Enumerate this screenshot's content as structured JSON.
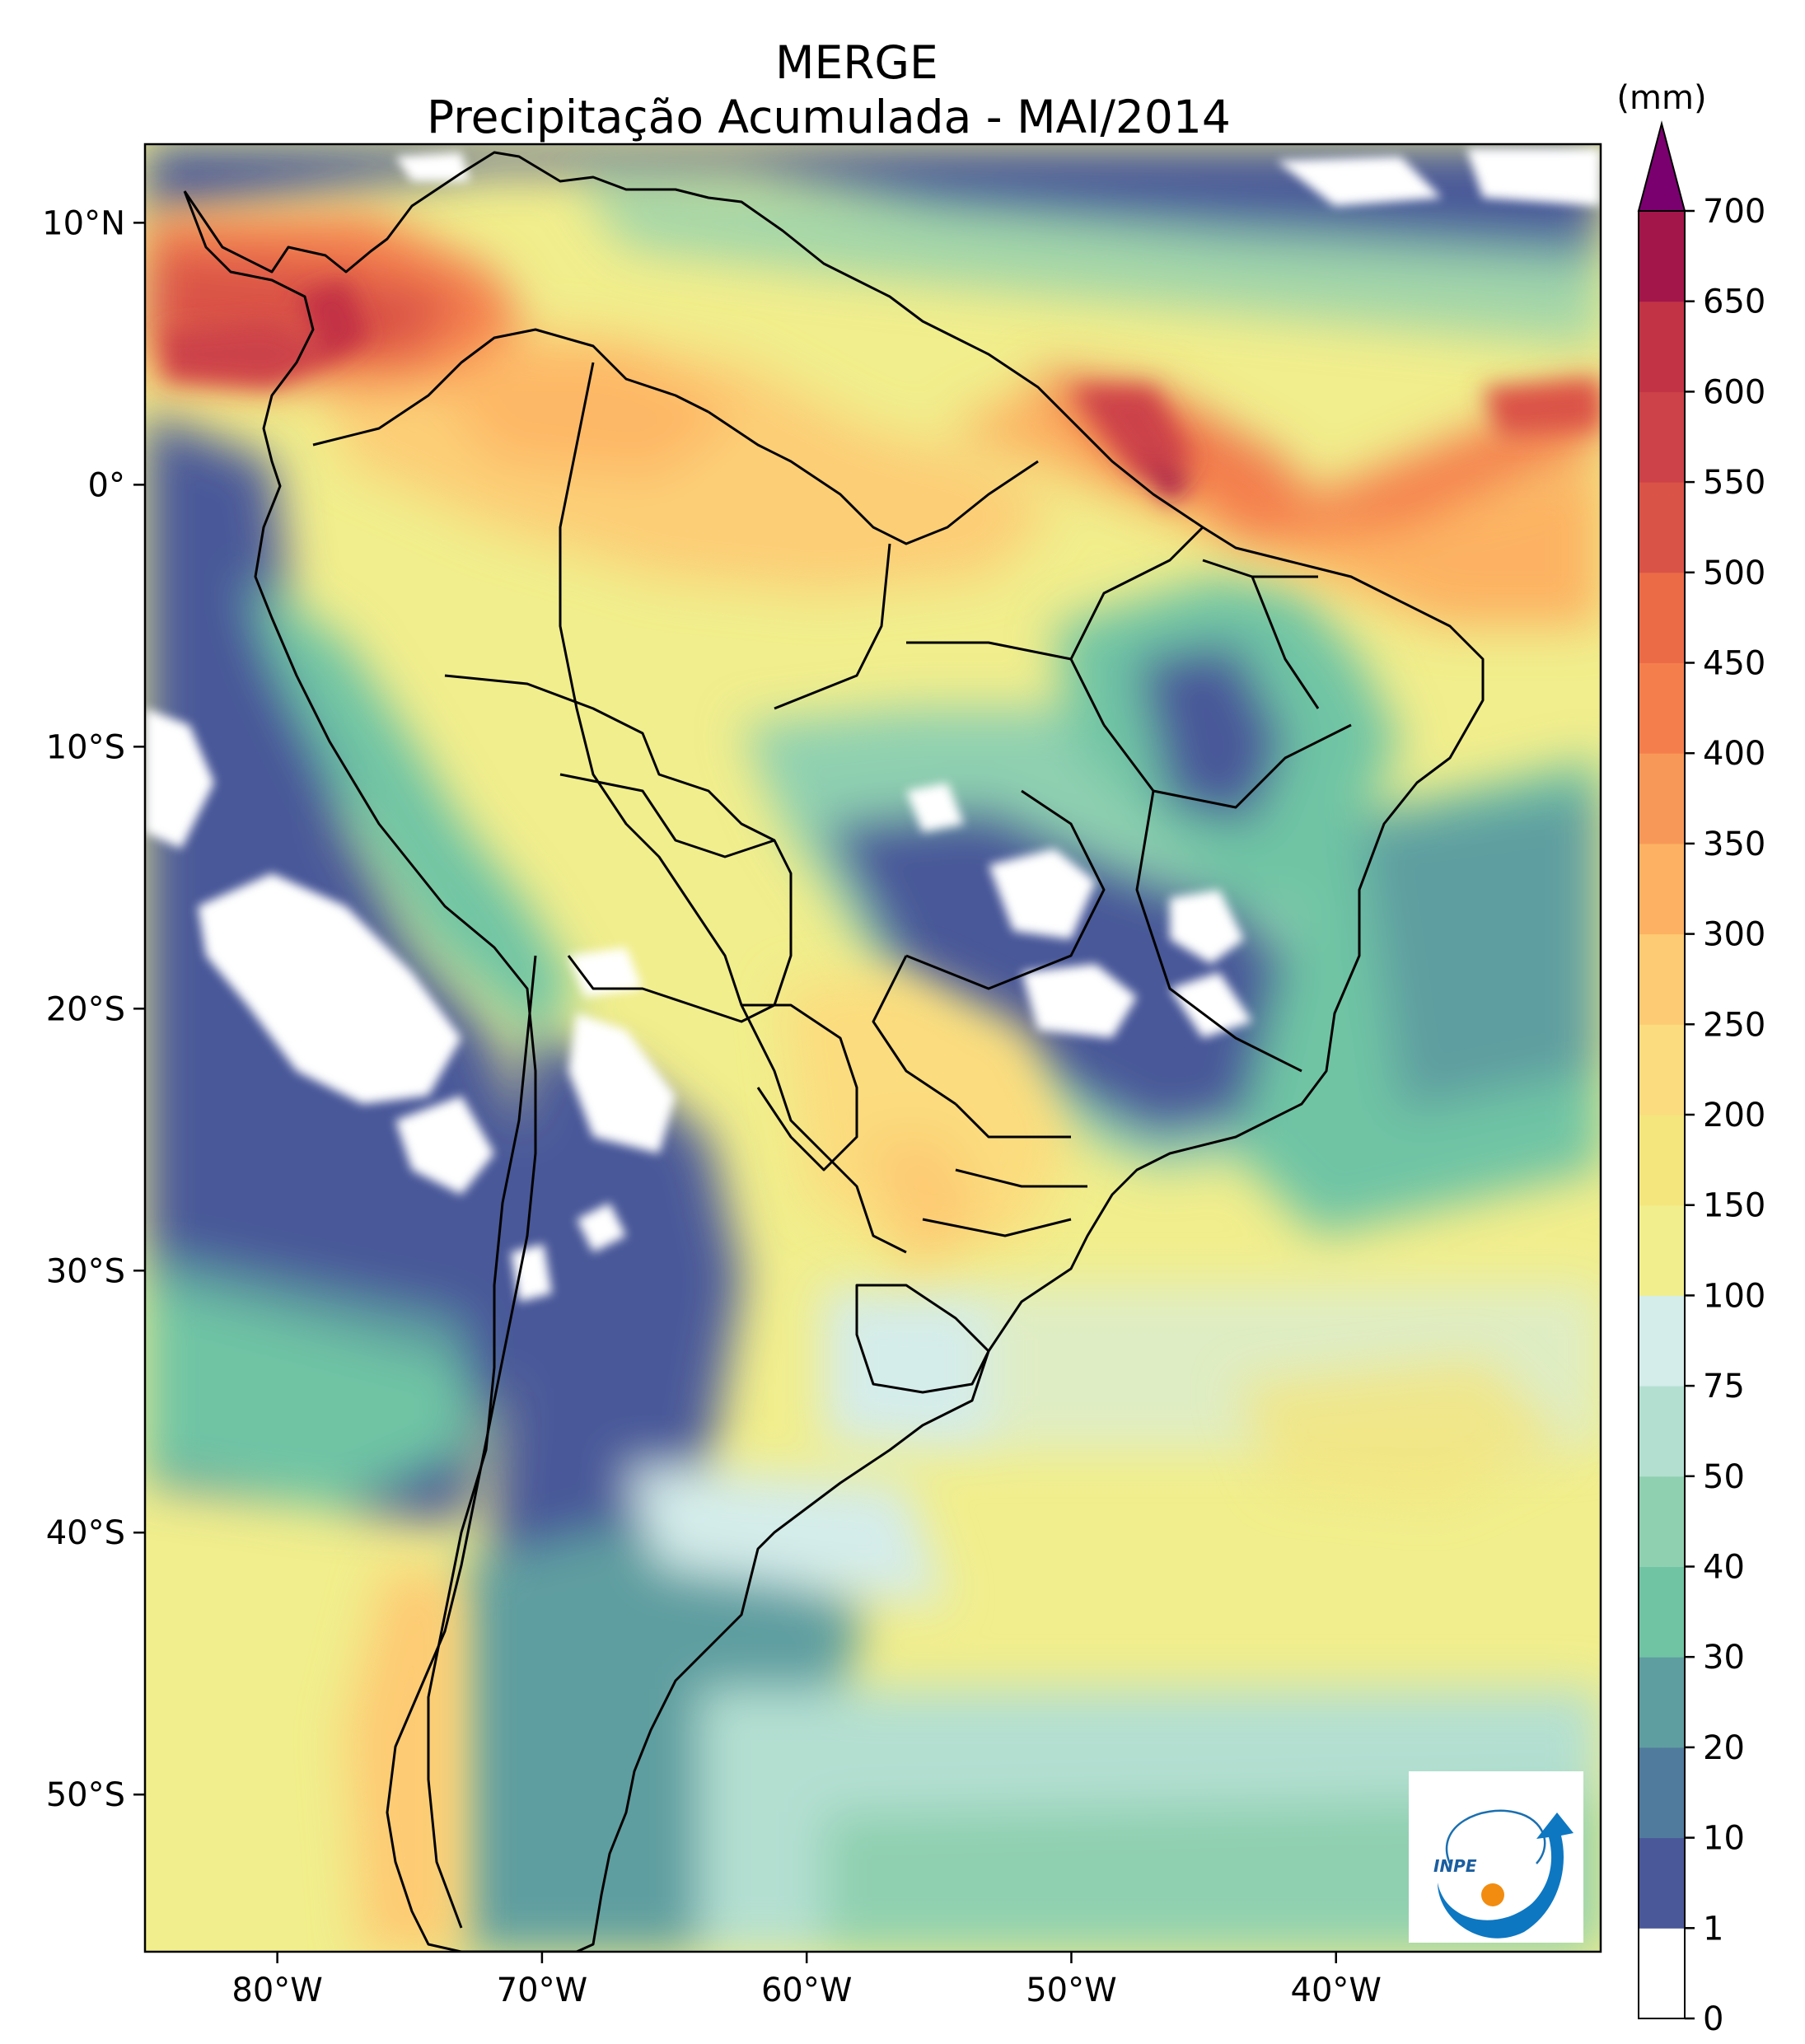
{
  "title": {
    "line1": "MERGE",
    "line2": "Precipitação Acumulada - MAI/2014"
  },
  "map": {
    "lon_range": [
      -85,
      -30
    ],
    "lat_range": [
      -56,
      13
    ],
    "lat_ticks": [
      {
        "value": 10,
        "label": "10°N"
      },
      {
        "value": 0,
        "label": "0°"
      },
      {
        "value": -10,
        "label": "10°S"
      },
      {
        "value": -20,
        "label": "20°S"
      },
      {
        "value": -30,
        "label": "30°S"
      },
      {
        "value": -40,
        "label": "40°S"
      },
      {
        "value": -50,
        "label": "50°S"
      }
    ],
    "lon_ticks": [
      {
        "value": -80,
        "label": "80°W"
      },
      {
        "value": -70,
        "label": "70°W"
      },
      {
        "value": -60,
        "label": "60°W"
      },
      {
        "value": -50,
        "label": "50°W"
      },
      {
        "value": -40,
        "label": "40°W"
      }
    ]
  },
  "colorbar": {
    "unit": "(mm)",
    "levels": [
      0,
      1,
      10,
      20,
      30,
      40,
      50,
      75,
      100,
      150,
      200,
      250,
      300,
      350,
      400,
      450,
      500,
      550,
      600,
      650,
      700
    ],
    "colors": [
      "#ffffff",
      "#4a5899",
      "#507b9d",
      "#5f9ea0",
      "#70c4a4",
      "#8fd0b0",
      "#b3dfd1",
      "#d4ecea",
      "#f1ee8d",
      "#f4e57d",
      "#fbdc7e",
      "#fdcb73",
      "#fcb262",
      "#f89858",
      "#f47f4d",
      "#ec6b47",
      "#da5347",
      "#cc4248",
      "#c23345",
      "#a3164a"
    ],
    "extend_color": "#7b006f"
  },
  "logo": {
    "text": "INPE"
  },
  "colors": {
    "ocean_base": "#f1ee8d",
    "border": "#000000"
  }
}
